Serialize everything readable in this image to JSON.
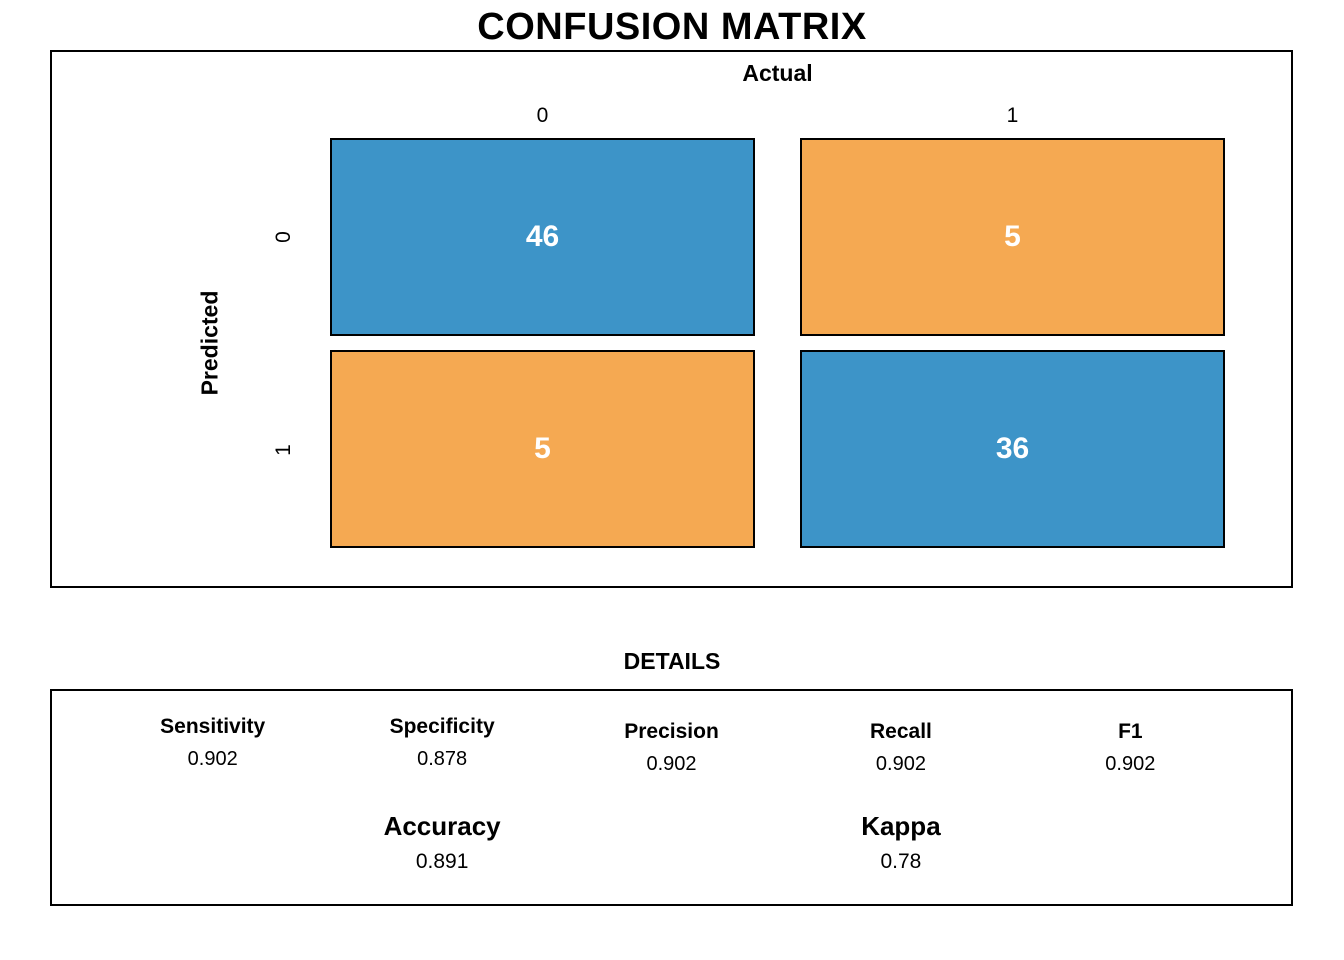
{
  "chart_data": {
    "type": "heatmap",
    "title": "CONFUSION MATRIX",
    "xlabel": "Actual",
    "ylabel": "Predicted",
    "x_categories": [
      "0",
      "1"
    ],
    "y_categories": [
      "0",
      "1"
    ],
    "values": [
      [
        46,
        5
      ],
      [
        5,
        36
      ]
    ],
    "cell_colors": [
      [
        "#3D94C8",
        "#F5A952"
      ],
      [
        "#F5A952",
        "#3D94C8"
      ]
    ],
    "cell_value_text_color": "#FFFFFF",
    "cell_border_color": "#000000",
    "details_title": "DETAILS",
    "metrics": [
      {
        "label": "Sensitivity",
        "value": "0.902"
      },
      {
        "label": "Specificity",
        "value": "0.878"
      },
      {
        "label": "Precision",
        "value": "0.902"
      },
      {
        "label": "Recall",
        "value": "0.902"
      },
      {
        "label": "F1",
        "value": "0.902"
      }
    ],
    "summary_metrics": [
      {
        "label": "Accuracy",
        "value": "0.891"
      },
      {
        "label": "Kappa",
        "value": "0.78"
      }
    ]
  }
}
